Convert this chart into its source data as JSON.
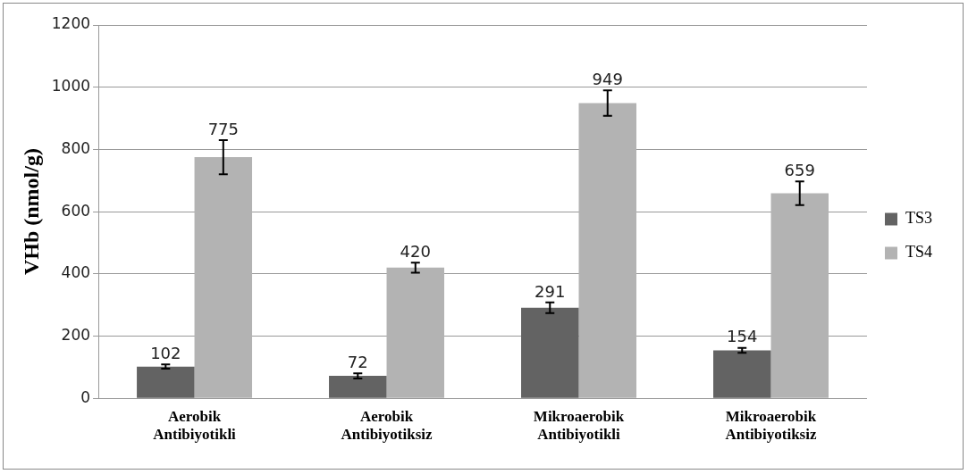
{
  "chart_data": {
    "type": "bar",
    "ylabel": "VHb (nmol/g)",
    "categories": [
      "Aerobik Antibiyotikli",
      "Aerobik Antibiyotiksiz",
      "Mikroaerobik Antibiyotikli",
      "Mikroaerobik Antibiyotiksiz"
    ],
    "series": [
      {
        "name": "TS3",
        "color": "#636363",
        "values": [
          102,
          72,
          291,
          154
        ],
        "errors": [
          7,
          8,
          17,
          8
        ]
      },
      {
        "name": "TS4",
        "color": "#b3b3b3",
        "values": [
          775,
          420,
          949,
          659
        ],
        "errors": [
          55,
          16,
          41,
          38
        ]
      }
    ],
    "ylim": [
      0,
      1200
    ],
    "yticks": [
      0,
      200,
      400,
      600,
      800,
      1000,
      1200
    ],
    "grid": "y",
    "legend": "right",
    "data_labels": true
  }
}
